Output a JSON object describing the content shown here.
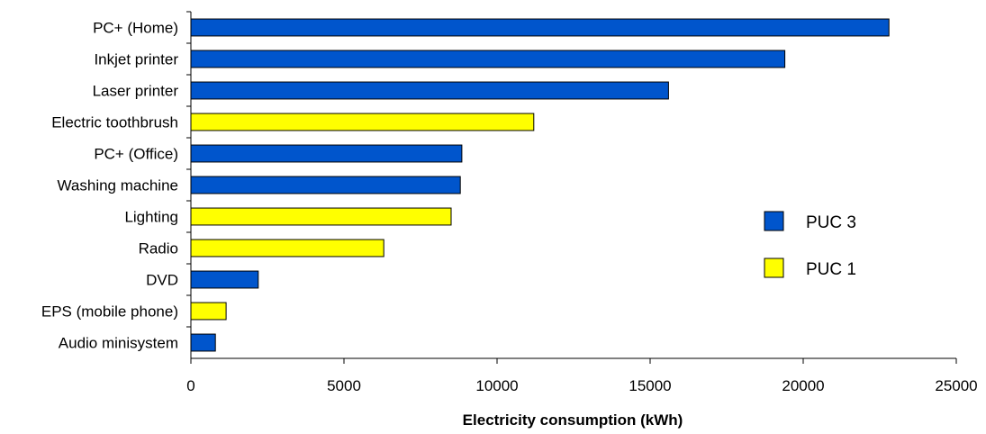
{
  "chart_data": {
    "type": "bar",
    "orientation": "horizontal",
    "categories": [
      "PC+ (Home)",
      "Inkjet printer",
      "Laser printer",
      "Electric toothbrush",
      "PC+ (Office)",
      "Washing machine",
      "Lighting",
      "Radio",
      "DVD",
      "EPS (mobile phone)",
      "Audio minisystem"
    ],
    "values": [
      22800,
      19400,
      15600,
      11200,
      8850,
      8800,
      8500,
      6300,
      2200,
      1150,
      800
    ],
    "groups": [
      "PUC 3",
      "PUC 3",
      "PUC 3",
      "PUC 1",
      "PUC 3",
      "PUC 3",
      "PUC 1",
      "PUC 1",
      "PUC 3",
      "PUC 1",
      "PUC 3"
    ],
    "series": [
      {
        "name": "PUC 3",
        "color": "#0055CC"
      },
      {
        "name": "PUC 1",
        "color": "#FFFF00"
      }
    ],
    "xlabel": "Electricity consumption (kWh)",
    "ylabel": "",
    "xlim": [
      0,
      25000
    ],
    "xticks": [
      0,
      5000,
      10000,
      15000,
      20000,
      25000
    ],
    "xtick_labels": [
      "0",
      "5000",
      "10000",
      "15000",
      "20000",
      "25000"
    ],
    "grid": false,
    "legend_position": "center-right"
  }
}
